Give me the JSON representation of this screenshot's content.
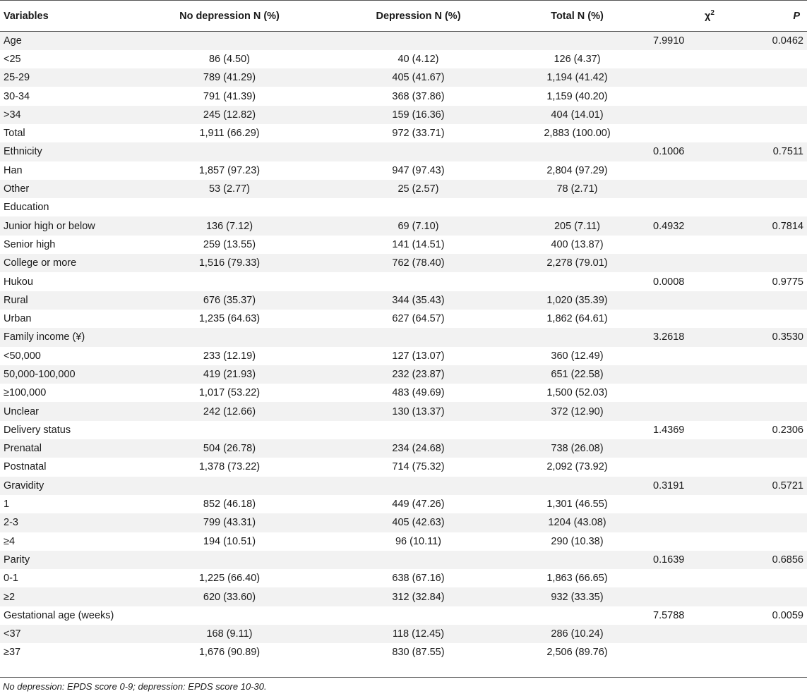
{
  "header": {
    "variables": "Variables",
    "no_depression": "No depression N (%)",
    "depression": "Depression N (%)",
    "total": "Total N (%)",
    "chi_base": "χ",
    "chi_sup": "2",
    "p": "P"
  },
  "rows": [
    [
      "Age",
      "",
      "",
      "",
      "7.9910",
      "0.0462"
    ],
    [
      "<25",
      "86 (4.50)",
      "40 (4.12)",
      "126 (4.37)",
      "",
      ""
    ],
    [
      "25-29",
      "789 (41.29)",
      "405 (41.67)",
      "1,194 (41.42)",
      "",
      ""
    ],
    [
      "30-34",
      "791 (41.39)",
      "368 (37.86)",
      "1,159 (40.20)",
      "",
      ""
    ],
    [
      ">34",
      "245 (12.82)",
      "159 (16.36)",
      "404 (14.01)",
      "",
      ""
    ],
    [
      "Total",
      "1,911 (66.29)",
      "972 (33.71)",
      "2,883 (100.00)",
      "",
      ""
    ],
    [
      "Ethnicity",
      "",
      "",
      "",
      "0.1006",
      "0.7511"
    ],
    [
      "Han",
      "1,857 (97.23)",
      "947 (97.43)",
      "2,804 (97.29)",
      "",
      ""
    ],
    [
      "Other",
      "53 (2.77)",
      "25 (2.57)",
      "78 (2.71)",
      "",
      ""
    ],
    [
      "Education",
      "",
      "",
      "",
      "",
      ""
    ],
    [
      "Junior high or below",
      "136 (7.12)",
      "69 (7.10)",
      "205 (7.11)",
      "0.4932",
      "0.7814"
    ],
    [
      "Senior high",
      "259 (13.55)",
      "141 (14.51)",
      "400 (13.87)",
      "",
      ""
    ],
    [
      "College or more",
      "1,516 (79.33)",
      "762 (78.40)",
      "2,278 (79.01)",
      "",
      ""
    ],
    [
      "Hukou",
      "",
      "",
      "",
      "0.0008",
      "0.9775"
    ],
    [
      "Rural",
      "676 (35.37)",
      "344 (35.43)",
      "1,020 (35.39)",
      "",
      ""
    ],
    [
      "Urban",
      "1,235 (64.63)",
      "627 (64.57)",
      "1,862 (64.61)",
      "",
      ""
    ],
    [
      "Family income (¥)",
      "",
      "",
      "",
      "3.2618",
      "0.3530"
    ],
    [
      "<50,000",
      "233 (12.19)",
      "127 (13.07)",
      "360 (12.49)",
      "",
      ""
    ],
    [
      "50,000-100,000",
      "419 (21.93)",
      "232 (23.87)",
      "651 (22.58)",
      "",
      ""
    ],
    [
      "≥100,000",
      "1,017 (53.22)",
      "483 (49.69)",
      "1,500 (52.03)",
      "",
      ""
    ],
    [
      "Unclear",
      "242 (12.66)",
      "130 (13.37)",
      "372 (12.90)",
      "",
      ""
    ],
    [
      "Delivery status",
      "",
      "",
      "",
      "1.4369",
      "0.2306"
    ],
    [
      "Prenatal",
      "504 (26.78)",
      "234 (24.68)",
      "738 (26.08)",
      "",
      ""
    ],
    [
      "Postnatal",
      "1,378 (73.22)",
      "714 (75.32)",
      "2,092 (73.92)",
      "",
      ""
    ],
    [
      "Gravidity",
      "",
      "",
      "",
      "0.3191",
      "0.5721"
    ],
    [
      "1",
      "852 (46.18)",
      "449 (47.26)",
      "1,301 (46.55)",
      "",
      ""
    ],
    [
      "2-3",
      "799 (43.31)",
      "405 (42.63)",
      "1204 (43.08)",
      "",
      ""
    ],
    [
      "≥4",
      "194 (10.51)",
      "96 (10.11)",
      "290 (10.38)",
      "",
      ""
    ],
    [
      "Parity",
      "",
      "",
      "",
      "0.1639",
      "0.6856"
    ],
    [
      "0-1",
      "1,225 (66.40)",
      "638 (67.16)",
      "1,863 (66.65)",
      "",
      ""
    ],
    [
      "≥2",
      "620 (33.60)",
      "312 (32.84)",
      "932 (33.35)",
      "",
      ""
    ],
    [
      "Gestational age (weeks)",
      "",
      "",
      "",
      "7.5788",
      "0.0059"
    ],
    [
      "<37",
      "168 (9.11)",
      "118 (12.45)",
      "286 (10.24)",
      "",
      ""
    ],
    [
      "≥37",
      "1,676 (90.89)",
      "830 (87.55)",
      "2,506 (89.76)",
      "",
      ""
    ]
  ],
  "footnote": "No depression: EPDS score 0-9; depression: EPDS score 10-30."
}
